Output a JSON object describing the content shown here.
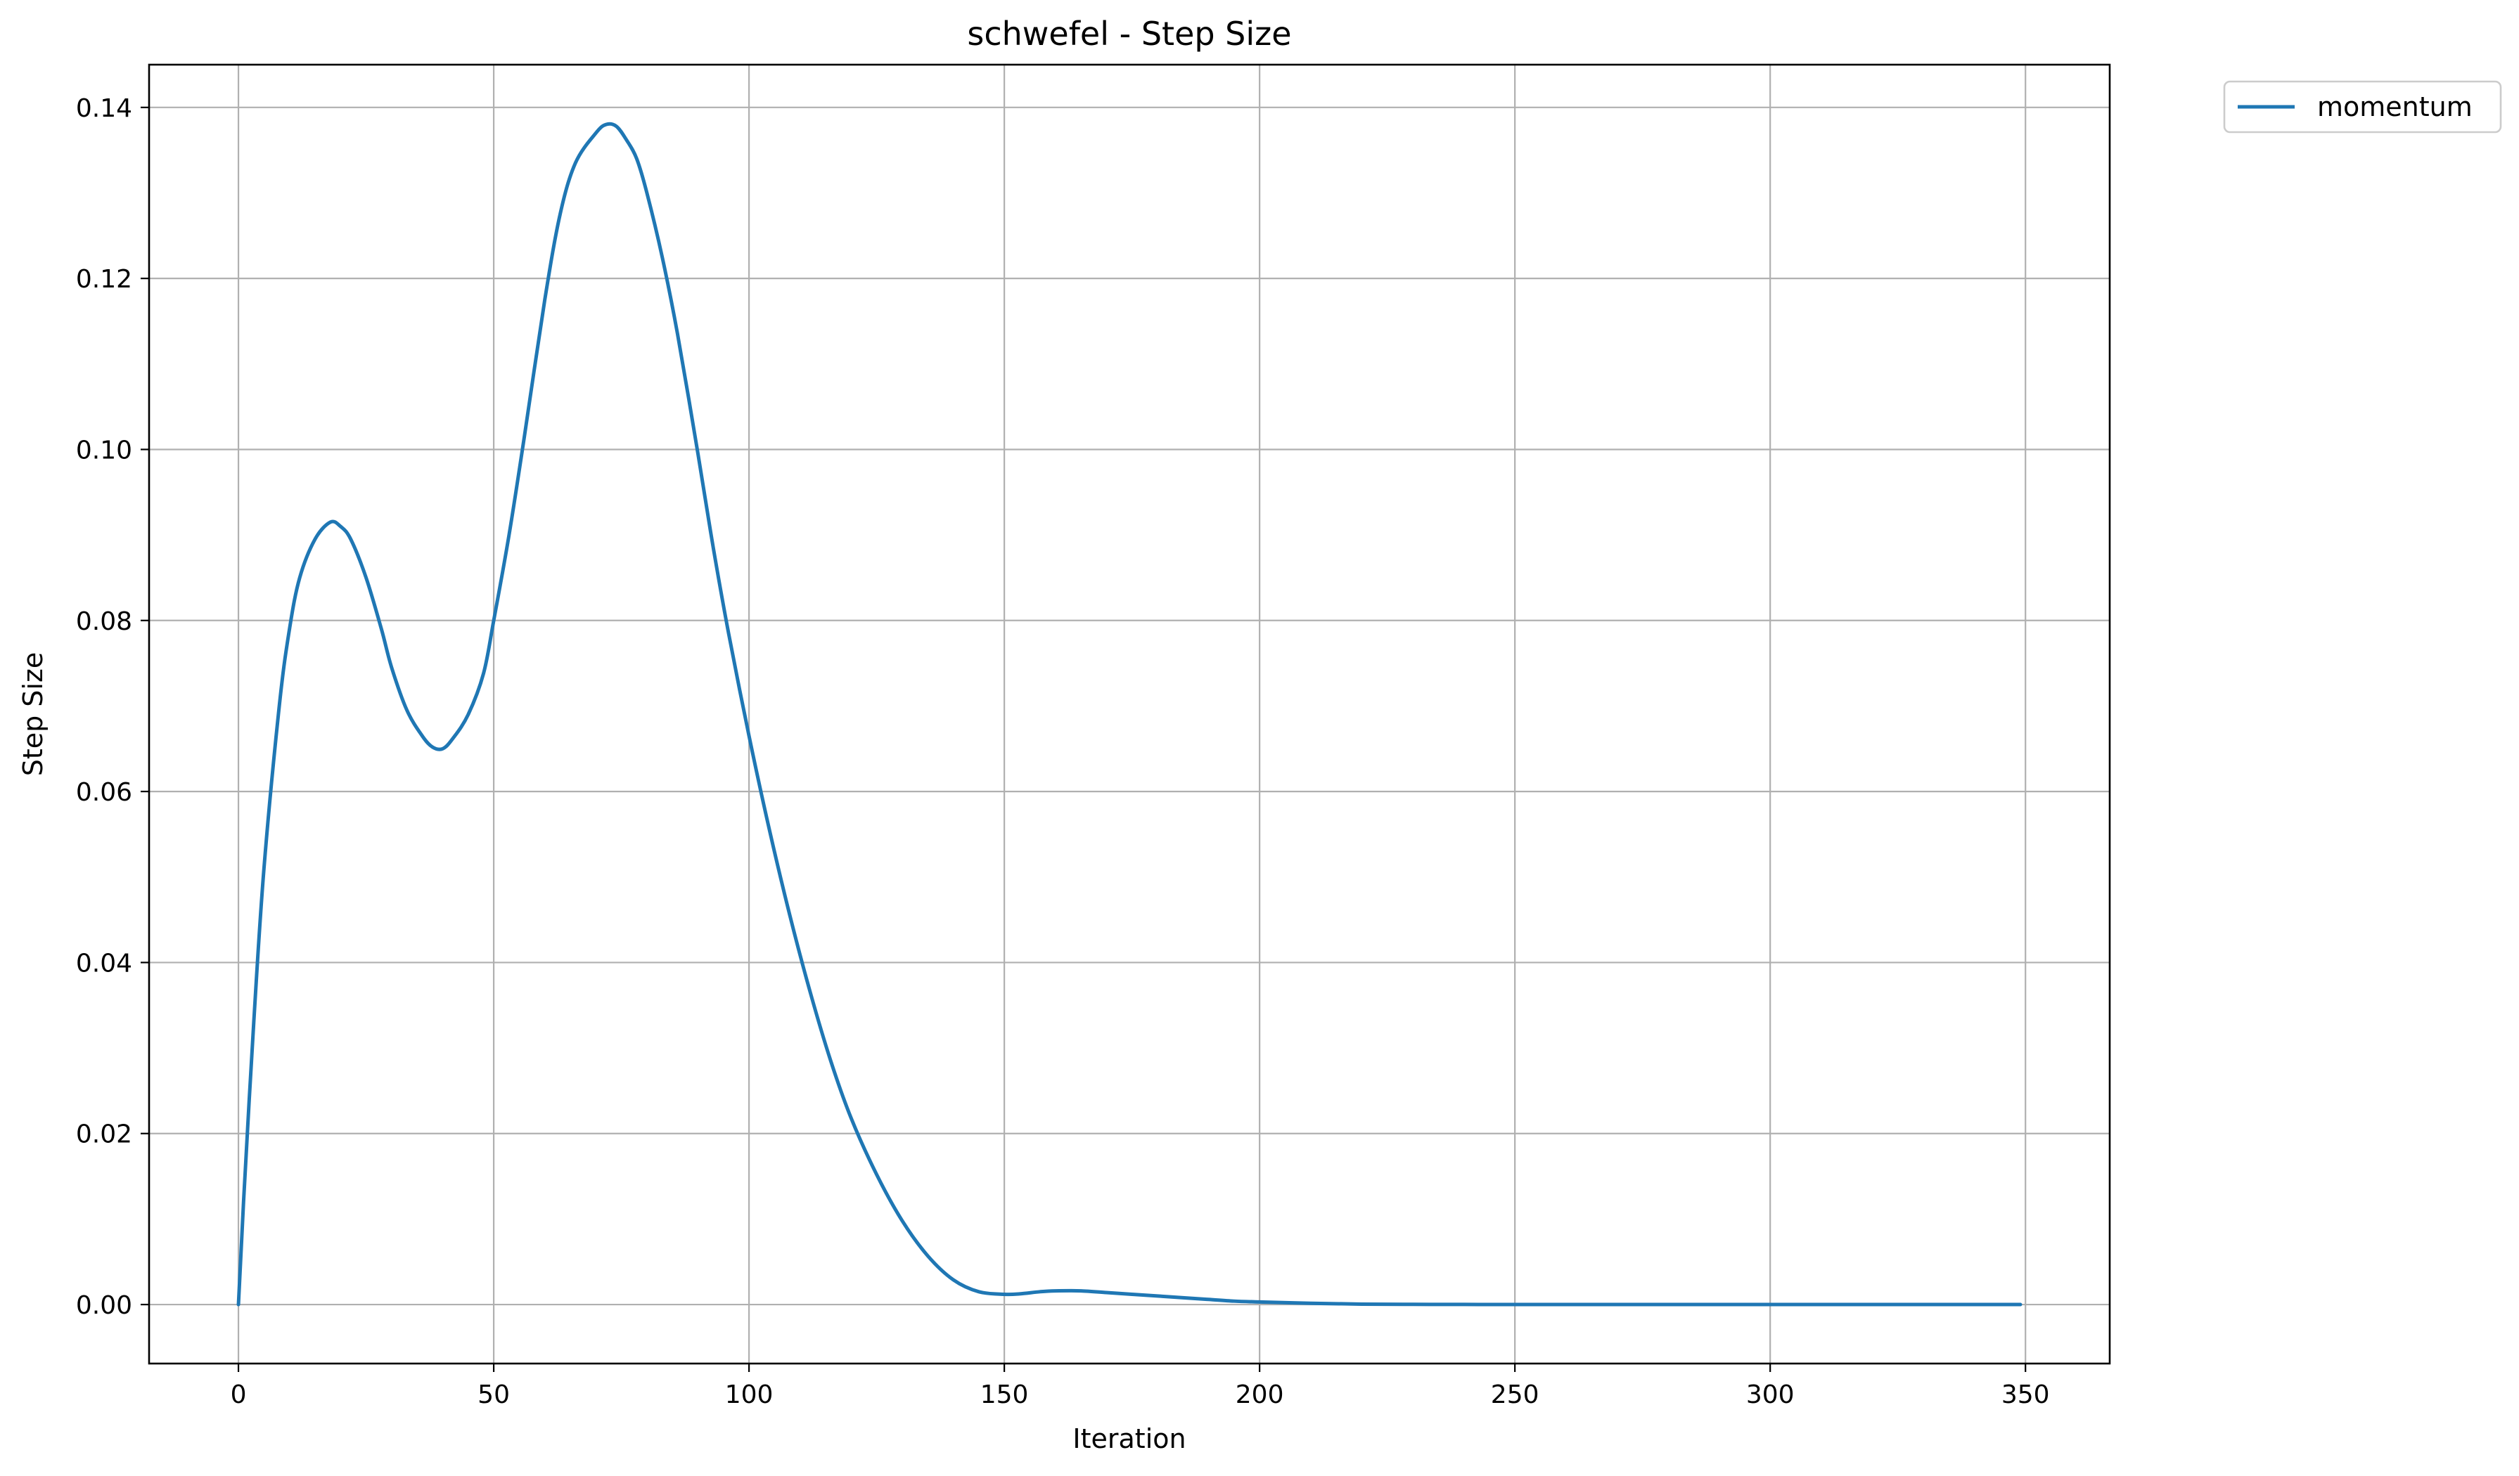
{
  "chart_data": {
    "type": "line",
    "title": "schwefel - Step Size",
    "xlabel": "Iteration",
    "ylabel": "Step Size",
    "xlim": [
      -17.5,
      366.5
    ],
    "ylim": [
      -0.0069,
      0.145
    ],
    "xticks": [
      0,
      50,
      100,
      150,
      200,
      250,
      300,
      350
    ],
    "xtick_labels": [
      "0",
      "50",
      "100",
      "150",
      "200",
      "250",
      "300",
      "350"
    ],
    "yticks": [
      0.0,
      0.02,
      0.04,
      0.06,
      0.08,
      0.1,
      0.12,
      0.14
    ],
    "ytick_labels": [
      "0.00",
      "0.02",
      "0.04",
      "0.06",
      "0.08",
      "0.10",
      "0.12",
      "0.14"
    ],
    "grid": true,
    "legend_position": "outside upper right",
    "series": [
      {
        "name": "momentum",
        "color": "#1f77b4",
        "x": [
          0,
          1,
          3,
          5,
          8,
          10,
          12,
          15,
          18,
          20,
          22,
          25,
          28,
          30,
          33,
          36,
          38,
          40,
          42,
          45,
          48,
          50,
          53,
          56,
          60,
          63,
          66,
          70,
          72,
          74,
          76,
          78,
          80,
          83,
          86,
          90,
          93,
          96,
          100,
          104,
          108,
          112,
          116,
          120,
          125,
          130,
          135,
          140,
          145,
          150,
          153,
          157,
          160,
          165,
          170,
          175,
          180,
          185,
          190,
          195,
          200,
          210,
          220,
          230,
          240,
          250,
          270,
          300,
          330,
          349
        ],
        "values": [
          0.0,
          0.012,
          0.033,
          0.051,
          0.07,
          0.079,
          0.085,
          0.0895,
          0.0915,
          0.091,
          0.0895,
          0.085,
          0.079,
          0.0745,
          0.0695,
          0.0665,
          0.0652,
          0.065,
          0.0662,
          0.069,
          0.0738,
          0.08,
          0.09,
          0.1015,
          0.1175,
          0.1275,
          0.1335,
          0.137,
          0.138,
          0.1378,
          0.1362,
          0.134,
          0.13,
          0.1225,
          0.1135,
          0.0995,
          0.0885,
          0.0785,
          0.0665,
          0.0555,
          0.0455,
          0.0365,
          0.0285,
          0.0218,
          0.0152,
          0.0098,
          0.0057,
          0.0029,
          0.0015,
          0.0012,
          0.00125,
          0.0015,
          0.0016,
          0.0016,
          0.0014,
          0.0012,
          0.001,
          0.0008,
          0.0006,
          0.0004,
          0.0003,
          0.00015,
          5e-05,
          2e-05,
          1e-05,
          0.0,
          0.0,
          0.0,
          0.0,
          0.0
        ]
      }
    ]
  }
}
